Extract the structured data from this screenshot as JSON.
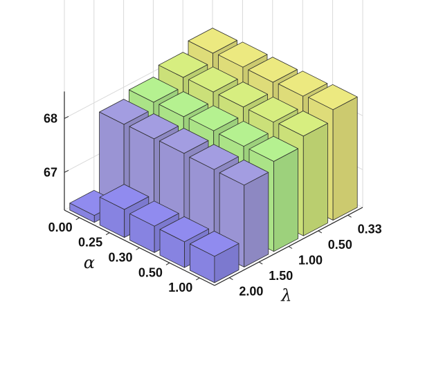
{
  "chart_data": {
    "type": "bar3d",
    "title": "",
    "zlabel": "",
    "zlim": [
      66.3,
      68.5
    ],
    "zticks": [
      "67",
      "68"
    ],
    "alpha": {
      "label": "α",
      "ticks": [
        "0.00",
        "0.25",
        "0.30",
        "0.50",
        "1.00"
      ]
    },
    "lambda": {
      "label": "λ",
      "ticks": [
        "0.33",
        "0.50",
        "1.00",
        "1.50",
        "2.00"
      ]
    },
    "rows": [
      {
        "alpha": "0.00",
        "values": [
          68.28,
          68.12,
          67.95,
          67.83,
          66.43
        ]
      },
      {
        "alpha": "0.25",
        "values": [
          68.3,
          68.13,
          67.96,
          67.84,
          66.82
        ]
      },
      {
        "alpha": "0.30",
        "values": [
          68.3,
          68.13,
          67.98,
          67.85,
          66.79
        ]
      },
      {
        "alpha": "0.50",
        "values": [
          68.32,
          68.13,
          67.97,
          67.83,
          66.78
        ]
      },
      {
        "alpha": "1.00",
        "values": [
          68.35,
          68.15,
          67.97,
          67.82,
          66.79
        ]
      }
    ],
    "colors": {
      "0.33": "#e3e07b",
      "0.50": "#cfe57b",
      "1.00": "#aee88a",
      "1.50": "#9d97d8",
      "2.00": "#8a86e6"
    },
    "grid": true
  }
}
